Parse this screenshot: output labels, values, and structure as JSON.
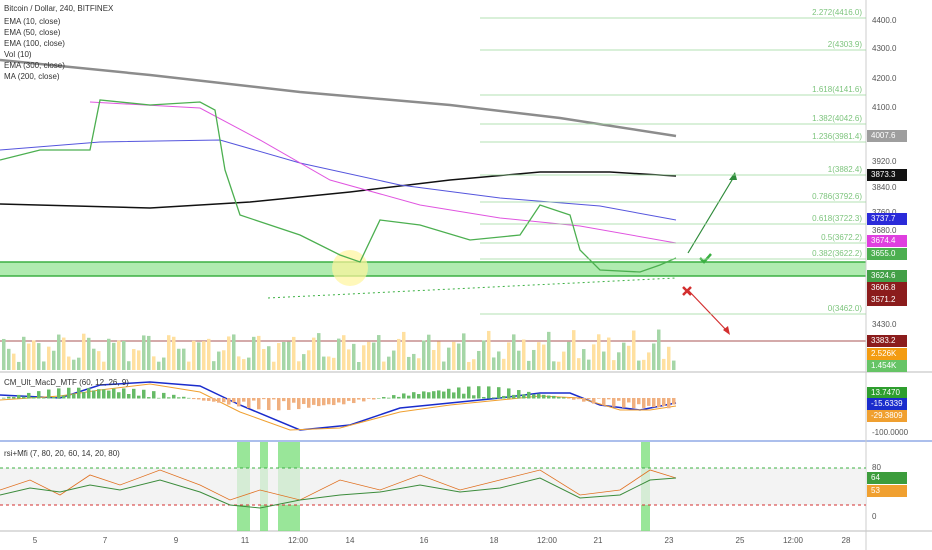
{
  "header": {
    "title": "Bitcoin / Dollar, 240, BITFINEX",
    "indicators": [
      "EMA (10, close)",
      "EMA (50, close)",
      "EMA (100, close)",
      "Vol (10)",
      "EMA (300, close)",
      "MA (200, close)"
    ]
  },
  "price_axis": [
    "4400.0",
    "4300.0",
    "4200.0",
    "4100.0",
    "3920.0",
    "3840.0",
    "3760.0",
    "3680.0",
    "3430.0"
  ],
  "fib_levels": [
    "2.272(4416.0)",
    "2(4303.9)",
    "1.618(4141.6)",
    "1.382(4042.6)",
    "1.236(3981.4)",
    "1(3882.4)",
    "0.786(3792.6)",
    "0.618(3722.3)",
    "0.5(3672.2)",
    "0.382(3622.2)",
    "0(3462.0)"
  ],
  "price_tags": [
    {
      "label": "4007.6",
      "color": "#9e9e9e"
    },
    {
      "label": "3873.3",
      "color": "#111111"
    },
    {
      "label": "3737.7",
      "color": "#2b2bd9"
    },
    {
      "label": "3674.4",
      "color": "#df3fdf"
    },
    {
      "label": "3655.0",
      "color": "#4caf50"
    },
    {
      "label": "3624.6",
      "color": "#43a047"
    },
    {
      "label": "3606.8",
      "color": "#8b1c1c"
    },
    {
      "label": "3571.2",
      "color": "#8b1c1c"
    },
    {
      "label": "3383.2",
      "color": "#8b1c1c"
    },
    {
      "label": "2.526K",
      "color": "#f39c12"
    },
    {
      "label": "1.454K",
      "color": "#66c466"
    }
  ],
  "macd": {
    "title": "CM_Ult_MacD_MTF (60, 12, 26, 9)",
    "tags": [
      {
        "label": "13.7470",
        "color": "#2e9e2e"
      },
      {
        "label": "-15.6339",
        "color": "#1a2ccc"
      },
      {
        "label": "-29.3809",
        "color": "#f0a030"
      }
    ],
    "axis": [
      "-100.0000"
    ]
  },
  "rsi": {
    "title": "rsi+Mfi (7, 80, 20, 60, 14, 20, 80)",
    "axis": [
      "80",
      "0"
    ],
    "tags": [
      {
        "label": "64",
        "color": "#3c9c3c"
      },
      {
        "label": "53",
        "color": "#f0a030"
      }
    ]
  },
  "time_axis": [
    "5",
    "7",
    "9",
    "11",
    "12:00",
    "14",
    "16",
    "18",
    "12:00",
    "21",
    "23",
    "25",
    "12:00",
    "28"
  ]
}
